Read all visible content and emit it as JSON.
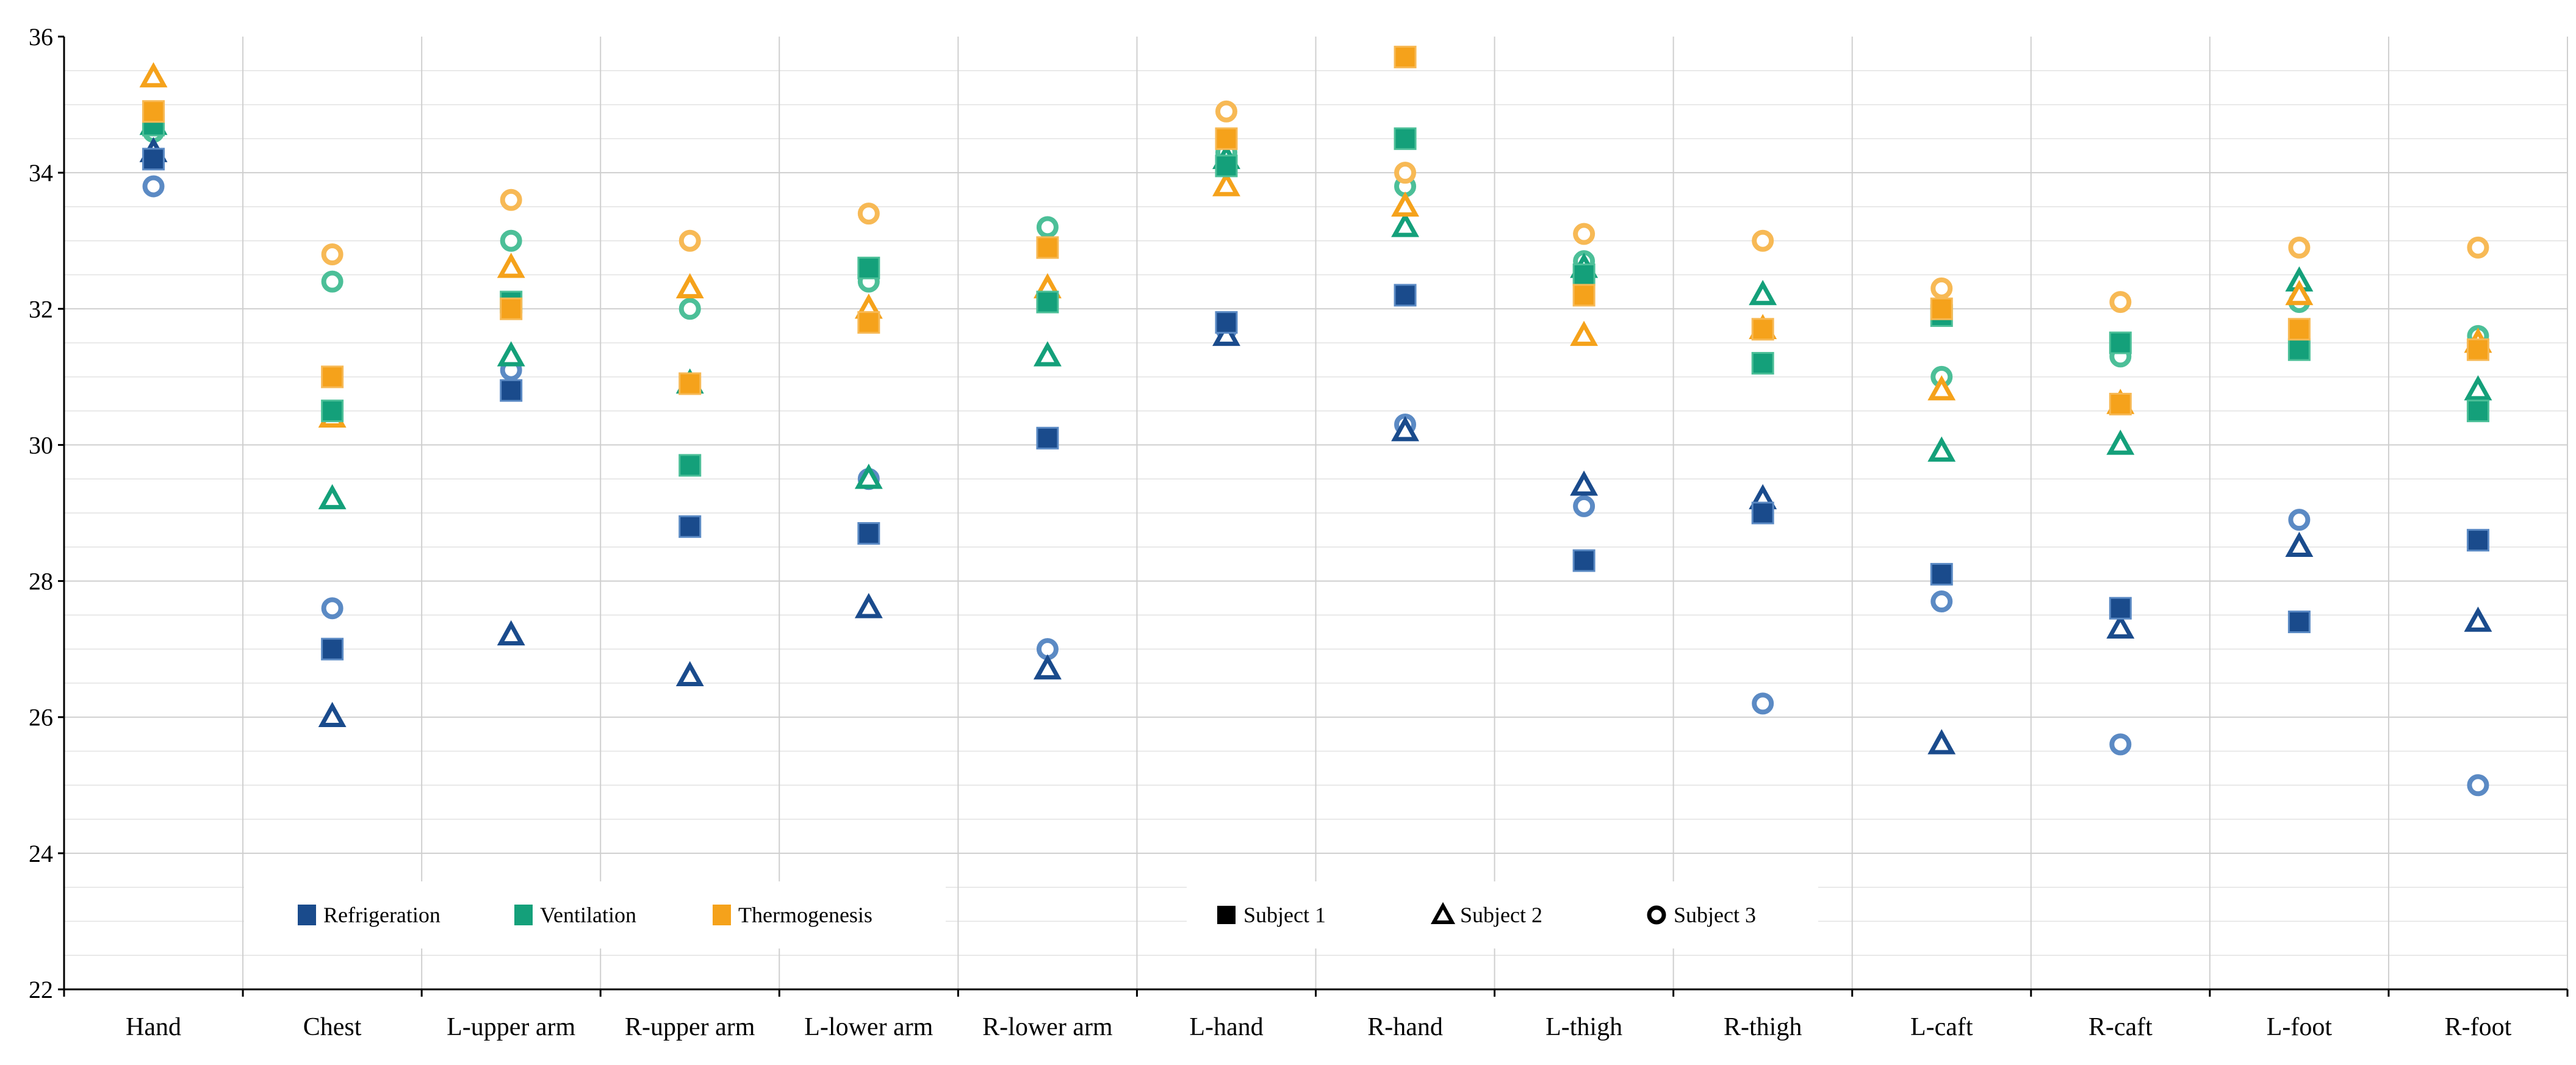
{
  "chart_data": {
    "type": "scatter",
    "title": "",
    "xlabel": "",
    "ylabel": "",
    "ylim": [
      22,
      36
    ],
    "yticks": [
      22,
      24,
      26,
      28,
      30,
      32,
      34,
      36
    ],
    "grid": true,
    "categories": [
      "Hand",
      "Chest",
      "L-upper arm",
      "R-upper arm",
      "L-lower arm",
      "R-lower arm",
      "L-hand",
      "R-hand",
      "L-thigh",
      "R-thigh",
      "L-caft",
      "R-caft",
      "L-foot",
      "R-foot"
    ],
    "conditions": [
      {
        "name": "Refrigeration",
        "color": "#1a4b8c",
        "light_color": "#5b8ac4"
      },
      {
        "name": "Ventilation",
        "color": "#14a07a",
        "light_color": "#4cbf98"
      },
      {
        "name": "Thermogenesis",
        "color": "#f5a21b",
        "light_color": "#f7b955"
      }
    ],
    "subjects": [
      {
        "name": "Subject 1",
        "marker": "square"
      },
      {
        "name": "Subject 2",
        "marker": "triangle"
      },
      {
        "name": "Subject 3",
        "marker": "circle"
      }
    ],
    "series": [
      {
        "condition": "Refrigeration",
        "subject": "Subject 1",
        "values": [
          34.2,
          27.0,
          30.8,
          28.8,
          28.7,
          30.1,
          31.8,
          32.2,
          28.3,
          29.0,
          28.1,
          27.6,
          27.4,
          28.6
        ]
      },
      {
        "condition": "Refrigeration",
        "subject": "Subject 2",
        "values": [
          34.3,
          26.0,
          27.2,
          26.6,
          27.6,
          26.7,
          31.6,
          30.2,
          29.4,
          29.2,
          25.6,
          27.3,
          28.5,
          27.4
        ]
      },
      {
        "condition": "Refrigeration",
        "subject": "Subject 3",
        "values": [
          33.8,
          27.6,
          31.1,
          28.8,
          29.5,
          27.0,
          31.7,
          30.3,
          29.1,
          26.2,
          27.7,
          25.6,
          28.9,
          25.0
        ]
      },
      {
        "condition": "Ventilation",
        "subject": "Subject 1",
        "values": [
          34.7,
          30.5,
          32.1,
          29.7,
          32.6,
          32.1,
          34.1,
          34.5,
          32.5,
          31.2,
          31.9,
          31.5,
          31.4,
          30.5
        ]
      },
      {
        "condition": "Ventilation",
        "subject": "Subject 2",
        "values": [
          34.7,
          29.2,
          31.3,
          30.9,
          29.5,
          31.3,
          34.2,
          33.2,
          32.6,
          32.2,
          29.9,
          30.0,
          32.4,
          30.8
        ]
      },
      {
        "condition": "Ventilation",
        "subject": "Subject 3",
        "values": [
          34.6,
          32.4,
          33.0,
          32.0,
          32.4,
          33.2,
          34.3,
          33.8,
          32.7,
          31.7,
          31.0,
          31.3,
          32.1,
          31.6
        ]
      },
      {
        "condition": "Thermogenesis",
        "subject": "Subject 1",
        "values": [
          34.9,
          31.0,
          32.0,
          30.9,
          31.8,
          32.9,
          34.5,
          35.7,
          32.2,
          31.7,
          32.0,
          30.6,
          31.7,
          31.4
        ]
      },
      {
        "condition": "Thermogenesis",
        "subject": "Subject 2",
        "values": [
          35.4,
          30.4,
          32.6,
          32.3,
          32.0,
          32.3,
          33.8,
          33.5,
          31.6,
          31.7,
          30.8,
          30.6,
          32.2,
          31.5
        ]
      },
      {
        "condition": "Thermogenesis",
        "subject": "Subject 3",
        "values": [
          34.9,
          32.8,
          33.6,
          33.0,
          33.4,
          32.9,
          34.9,
          34.0,
          33.1,
          33.0,
          32.3,
          32.1,
          32.9,
          32.9
        ]
      }
    ]
  }
}
